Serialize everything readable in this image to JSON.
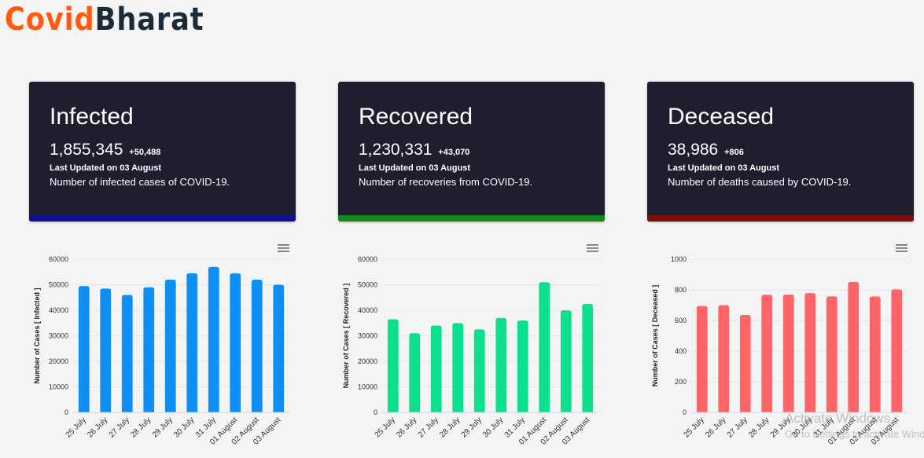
{
  "brand": {
    "part1": "Covid",
    "part2": "Bharat"
  },
  "cards": [
    {
      "title": "Infected",
      "count": "1,855,345",
      "delta": "+50,488",
      "updated": "Last Updated on 03 August",
      "description": "Number of infected cases of COVID-19.",
      "accent": "#0f0f8f"
    },
    {
      "title": "Recovered",
      "count": "1,230,331",
      "delta": "+43,070",
      "updated": "Last Updated on 03 August",
      "description": "Number of recoveries from COVID-19.",
      "accent": "#15881a"
    },
    {
      "title": "Deceased",
      "count": "38,986",
      "delta": "+806",
      "updated": "Last Updated on 03 August",
      "description": "Number of deaths caused by COVID-19.",
      "accent": "#7a0d0d"
    }
  ],
  "chart_data": [
    {
      "type": "bar",
      "title": "",
      "xlabel": "",
      "ylabel": "Number of Cases [ Infected ]",
      "categories": [
        "25 July",
        "26 July",
        "27 July",
        "28 July",
        "29 July",
        "30 July",
        "31 July",
        "01 August",
        "02 August",
        "03 August"
      ],
      "values": [
        49500,
        48500,
        46000,
        49000,
        52000,
        54500,
        57000,
        54500,
        52000,
        50000
      ],
      "ylim": [
        0,
        60000
      ],
      "yticks": [
        "0",
        "10000",
        "20000",
        "30000",
        "40000",
        "50000",
        "60000"
      ],
      "color": "#0d8ff5"
    },
    {
      "type": "bar",
      "title": "",
      "xlabel": "",
      "ylabel": "Number of Cases [ Recovered ]",
      "categories": [
        "25 July",
        "26 July",
        "27 July",
        "28 July",
        "29 July",
        "30 July",
        "31 July",
        "01 August",
        "02 August",
        "03 August"
      ],
      "values": [
        36500,
        31000,
        34000,
        35000,
        32500,
        37000,
        36000,
        51000,
        40000,
        42500
      ],
      "ylim": [
        0,
        60000
      ],
      "yticks": [
        "0",
        "10000",
        "20000",
        "30000",
        "40000",
        "50000",
        "60000"
      ],
      "color": "#0ce08d"
    },
    {
      "type": "bar",
      "title": "",
      "xlabel": "",
      "ylabel": "Number of Cases [ Deceased ]",
      "categories": [
        "25 July",
        "26 July",
        "27 July",
        "28 July",
        "29 July",
        "30 July",
        "31 July",
        "01 August",
        "02 August",
        "03 August"
      ],
      "values": [
        695,
        700,
        636,
        768,
        769,
        779,
        758,
        852,
        757,
        803
      ],
      "ylim": [
        0,
        1000
      ],
      "yticks": [
        "0",
        "200",
        "400",
        "600",
        "800",
        "1000"
      ],
      "color": "#ff6466"
    }
  ],
  "watermark": {
    "line1": "Activate Windows",
    "line2": "Go to Settings to activate Windows."
  }
}
